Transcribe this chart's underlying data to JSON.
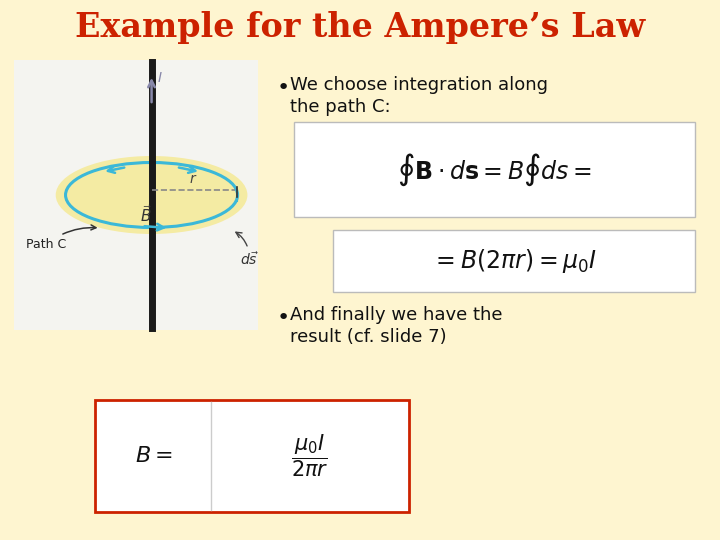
{
  "background_color": "#FEF5D0",
  "title": "Example for the Ampere’s Law",
  "title_color": "#CC2200",
  "title_fontsize": 24,
  "bullet1_line1": "We choose integration along",
  "bullet1_line2": "the path C:",
  "bullet2_line1": "And finally we have the",
  "bullet2_line2": "result (cf. slide 7)",
  "box_color": "#CC2200",
  "diagram_bg": "#F4F4F0",
  "ellipse_fill": "#F5E88A",
  "circle_color": "#3BB8D8",
  "wire_color": "#1A1A1A",
  "arrow_color": "#8888AA",
  "text_color": "#111111"
}
